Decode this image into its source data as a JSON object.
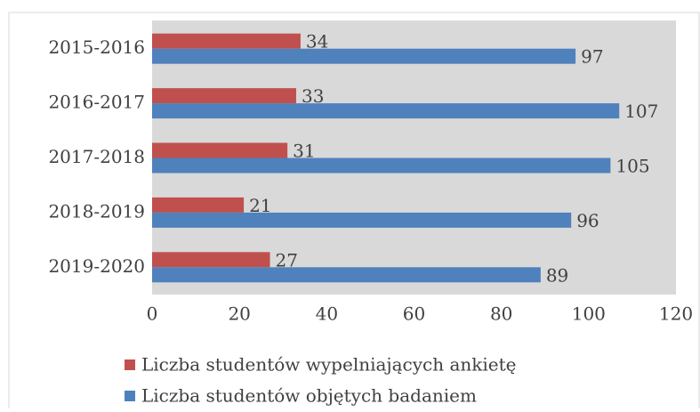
{
  "chart_data": {
    "type": "hbar",
    "categories": [
      "2015-2016",
      "2016-2017",
      "2017-2018",
      "2018-2019",
      "2019-2020"
    ],
    "series": [
      {
        "name": "Liczba studentów wypelniających ankietę",
        "color": "#c0504d",
        "values": [
          34,
          33,
          31,
          21,
          27
        ]
      },
      {
        "name": "Liczba studentów objętych badaniem",
        "color": "#4f81bd",
        "values": [
          97,
          107,
          105,
          96,
          89
        ]
      }
    ],
    "xlim": [
      0,
      120
    ],
    "xticks": [
      0,
      20,
      40,
      60,
      80,
      100,
      120
    ],
    "grid": false,
    "legend": "bottom"
  }
}
